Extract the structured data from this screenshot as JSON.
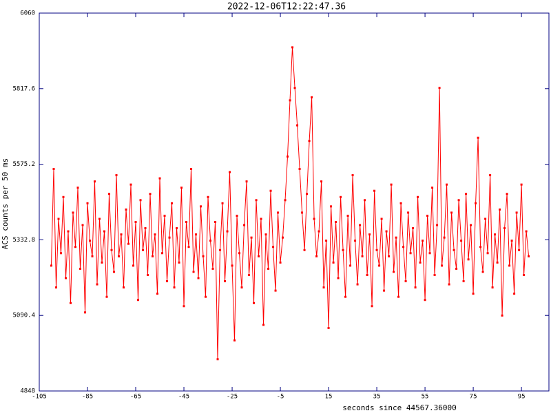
{
  "chart_data": {
    "type": "line",
    "title": "2022-12-06T12:22:47.36",
    "x_label": "seconds since 44567.36000",
    "y_label": "ACS counts per 50 ms",
    "xlim": [
      -105,
      106.4
    ],
    "ylim": [
      4848,
      6060
    ],
    "xticks": [
      -105,
      -85,
      -65,
      -45,
      -25,
      -5,
      15,
      35,
      55,
      75,
      95
    ],
    "yticks": [
      4848,
      5090.4,
      5332.8,
      5575.2,
      5817.6,
      6060
    ],
    "x": [
      -100,
      -99,
      -98,
      -97,
      -96,
      -95,
      -94,
      -93,
      -92,
      -91,
      -90,
      -89,
      -88,
      -87,
      -86,
      -85,
      -84,
      -83,
      -82,
      -81,
      -80,
      -79,
      -78,
      -77,
      -76,
      -75,
      -74,
      -73,
      -72,
      -71,
      -70,
      -69,
      -68,
      -67,
      -66,
      -65,
      -64,
      -63,
      -62,
      -61,
      -60,
      -59,
      -58,
      -57,
      -56,
      -55,
      -54,
      -53,
      -52,
      -51,
      -50,
      -49,
      -48,
      -47,
      -46,
      -45,
      -44,
      -43,
      -42,
      -41,
      -40,
      -39,
      -38,
      -37,
      -36,
      -35,
      -34,
      -33,
      -32,
      -31,
      -30,
      -29,
      -28,
      -27,
      -26,
      -25,
      -24,
      -23,
      -22,
      -21,
      -20,
      -19,
      -18,
      -17,
      -16,
      -15,
      -14,
      -13,
      -12,
      -11,
      -10,
      -9,
      -8,
      -7,
      -6,
      -5,
      -4,
      -3,
      -2,
      -1,
      0,
      1,
      2,
      3,
      4,
      5,
      6,
      7,
      8,
      9,
      10,
      11,
      12,
      13,
      14,
      15,
      16,
      17,
      18,
      19,
      20,
      21,
      22,
      23,
      24,
      25,
      26,
      27,
      28,
      29,
      30,
      31,
      32,
      33,
      34,
      35,
      36,
      37,
      38,
      39,
      40,
      41,
      42,
      43,
      44,
      45,
      46,
      47,
      48,
      49,
      50,
      51,
      52,
      53,
      54,
      55,
      56,
      57,
      58,
      59,
      60,
      61,
      62,
      63,
      64,
      65,
      66,
      67,
      68,
      69,
      70,
      71,
      72,
      73,
      74,
      75,
      76,
      77,
      78,
      79,
      80,
      81,
      82,
      83,
      84,
      85,
      86,
      87,
      88,
      89,
      90,
      91,
      92,
      93,
      94,
      95,
      96,
      97,
      98
    ],
    "series": [
      {
        "color": "#ff0000",
        "values": [
          5250,
          5560,
          5180,
          5400,
          5290,
          5470,
          5210,
          5360,
          5130,
          5420,
          5310,
          5500,
          5240,
          5380,
          5100,
          5450,
          5330,
          5280,
          5520,
          5190,
          5400,
          5260,
          5360,
          5150,
          5480,
          5300,
          5230,
          5540,
          5280,
          5350,
          5180,
          5430,
          5320,
          5510,
          5250,
          5390,
          5140,
          5460,
          5300,
          5370,
          5220,
          5480,
          5280,
          5350,
          5160,
          5530,
          5290,
          5410,
          5200,
          5340,
          5450,
          5180,
          5370,
          5260,
          5500,
          5120,
          5390,
          5310,
          5560,
          5230,
          5350,
          5210,
          5440,
          5280,
          5150,
          5470,
          5330,
          5240,
          5390,
          4950,
          5300,
          5450,
          5200,
          5360,
          5550,
          5250,
          5010,
          5410,
          5290,
          5180,
          5380,
          5520,
          5220,
          5340,
          5130,
          5460,
          5280,
          5400,
          5060,
          5350,
          5240,
          5490,
          5310,
          5170,
          5420,
          5260,
          5340,
          5460,
          5600,
          5780,
          5950,
          5820,
          5700,
          5560,
          5420,
          5300,
          5480,
          5650,
          5790,
          5400,
          5280,
          5360,
          5520,
          5180,
          5330,
          5050,
          5440,
          5260,
          5390,
          5210,
          5470,
          5300,
          5150,
          5410,
          5250,
          5540,
          5330,
          5190,
          5380,
          5280,
          5460,
          5220,
          5350,
          5120,
          5490,
          5300,
          5250,
          5400,
          5170,
          5360,
          5280,
          5510,
          5230,
          5340,
          5150,
          5450,
          5310,
          5200,
          5420,
          5290,
          5370,
          5180,
          5470,
          5260,
          5330,
          5140,
          5410,
          5290,
          5500,
          5220,
          5380,
          5820,
          5250,
          5340,
          5510,
          5190,
          5420,
          5300,
          5240,
          5460,
          5330,
          5200,
          5480,
          5270,
          5380,
          5160,
          5450,
          5660,
          5310,
          5230,
          5400,
          5290,
          5540,
          5180,
          5350,
          5260,
          5430,
          5090,
          5370,
          5480,
          5250,
          5330,
          5160,
          5420,
          5300,
          5510,
          5220,
          5360,
          5280
        ]
      }
    ]
  }
}
